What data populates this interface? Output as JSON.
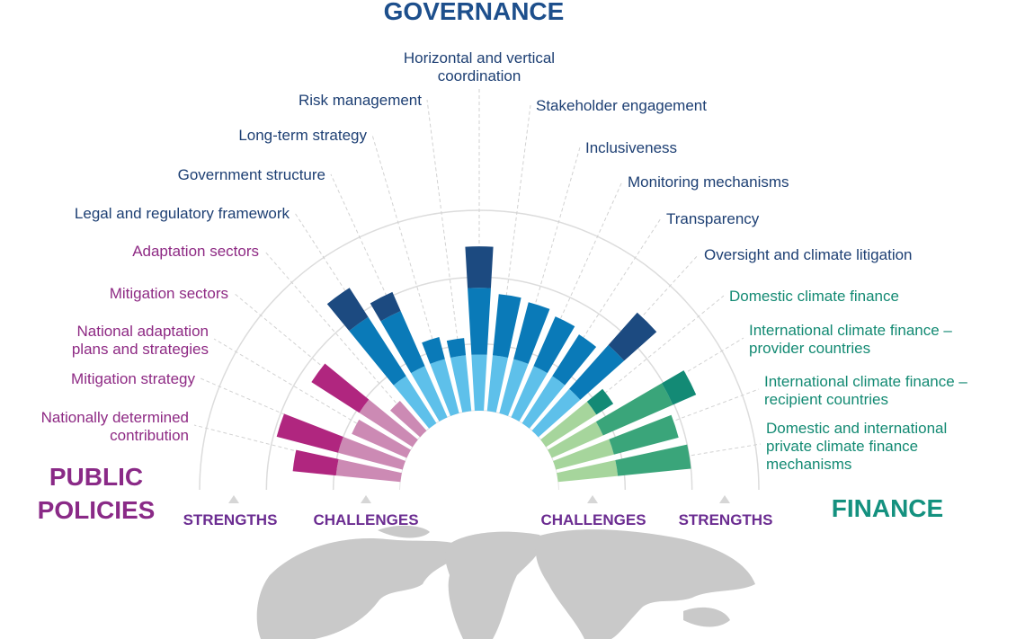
{
  "chart_data": {
    "type": "radial_bar",
    "ylim": [
      0,
      3
    ],
    "yticks": [
      0,
      1,
      2,
      3
    ],
    "zones": [
      "CHALLENGES",
      "STRENGTHS"
    ],
    "groups": [
      {
        "title": [
          "PUBLIC",
          "POLICIES"
        ],
        "title_color": "#8a2a87",
        "label_color": "#8e2a84",
        "categories": [
          [
            "Nationally determined",
            "contribution"
          ],
          [
            "Mitigation strategy"
          ],
          [
            "National adaptation",
            "plans and strategies"
          ],
          [
            "Mitigation sectors"
          ],
          [
            "Adaptation sectors"
          ]
        ],
        "series": [
          {
            "color": "#cc8ab4",
            "values": [
              0.97,
              1.0,
              0.9,
              0.95,
              0.6
            ]
          },
          {
            "color": "#b0267f",
            "values": [
              0.65,
              0.95,
              0,
              0.85,
              0
            ]
          }
        ]
      },
      {
        "title": [
          "GOVERNANCE"
        ],
        "title_color": "#1d4f8c",
        "label_color": "#1d3f73",
        "categories": [
          [
            "Legal and regulatory framework"
          ],
          [
            "Government structure"
          ],
          [
            "Long-term strategy"
          ],
          [
            "Risk management"
          ],
          [
            "Horizontal and vertical",
            "coordination"
          ],
          [
            "Stakeholder engagement"
          ],
          [
            "Inclusiveness"
          ],
          [
            "Monitoring mechanisms"
          ],
          [
            "Transparency"
          ],
          [
            "Oversight and climate litigation"
          ]
        ],
        "series": [
          {
            "color": "#5ec0ea",
            "values": [
              0.84,
              0.84,
              0.84,
              0.84,
              0.84,
              0.84,
              0.84,
              0.84,
              0.84,
              0.84
            ]
          },
          {
            "color": "#0a7ab8",
            "values": [
              1.05,
              0.9,
              0.34,
              0.26,
              1.0,
              0.92,
              0.88,
              0.81,
              0.74,
              0.88
            ]
          },
          {
            "color": "#1c4a80",
            "values": [
              0.52,
              0.31,
              0,
              0,
              0.62,
              0,
              0,
              0,
              0,
              0.65
            ]
          }
        ]
      },
      {
        "title": [
          "FINANCE"
        ],
        "title_color": "#14917f",
        "label_color": "#138a73",
        "categories": [
          [
            "Domestic climate finance"
          ],
          [
            "International climate finance –",
            "provider countries"
          ],
          [
            "International climate finance –",
            "recipient countries"
          ],
          [
            "Domestic and international",
            "private climate finance",
            "mechanisms"
          ]
        ],
        "series": [
          {
            "color": "#a6d59c",
            "values": [
              0.9,
              0.84,
              0.9,
              0.9
            ]
          },
          {
            "color": "#3aa57a",
            "values": [
              0,
              1.14,
              1.0,
              1.1
            ]
          },
          {
            "color": "#138a75",
            "values": [
              0.3,
              0.38,
              0,
              0
            ]
          }
        ]
      }
    ]
  }
}
